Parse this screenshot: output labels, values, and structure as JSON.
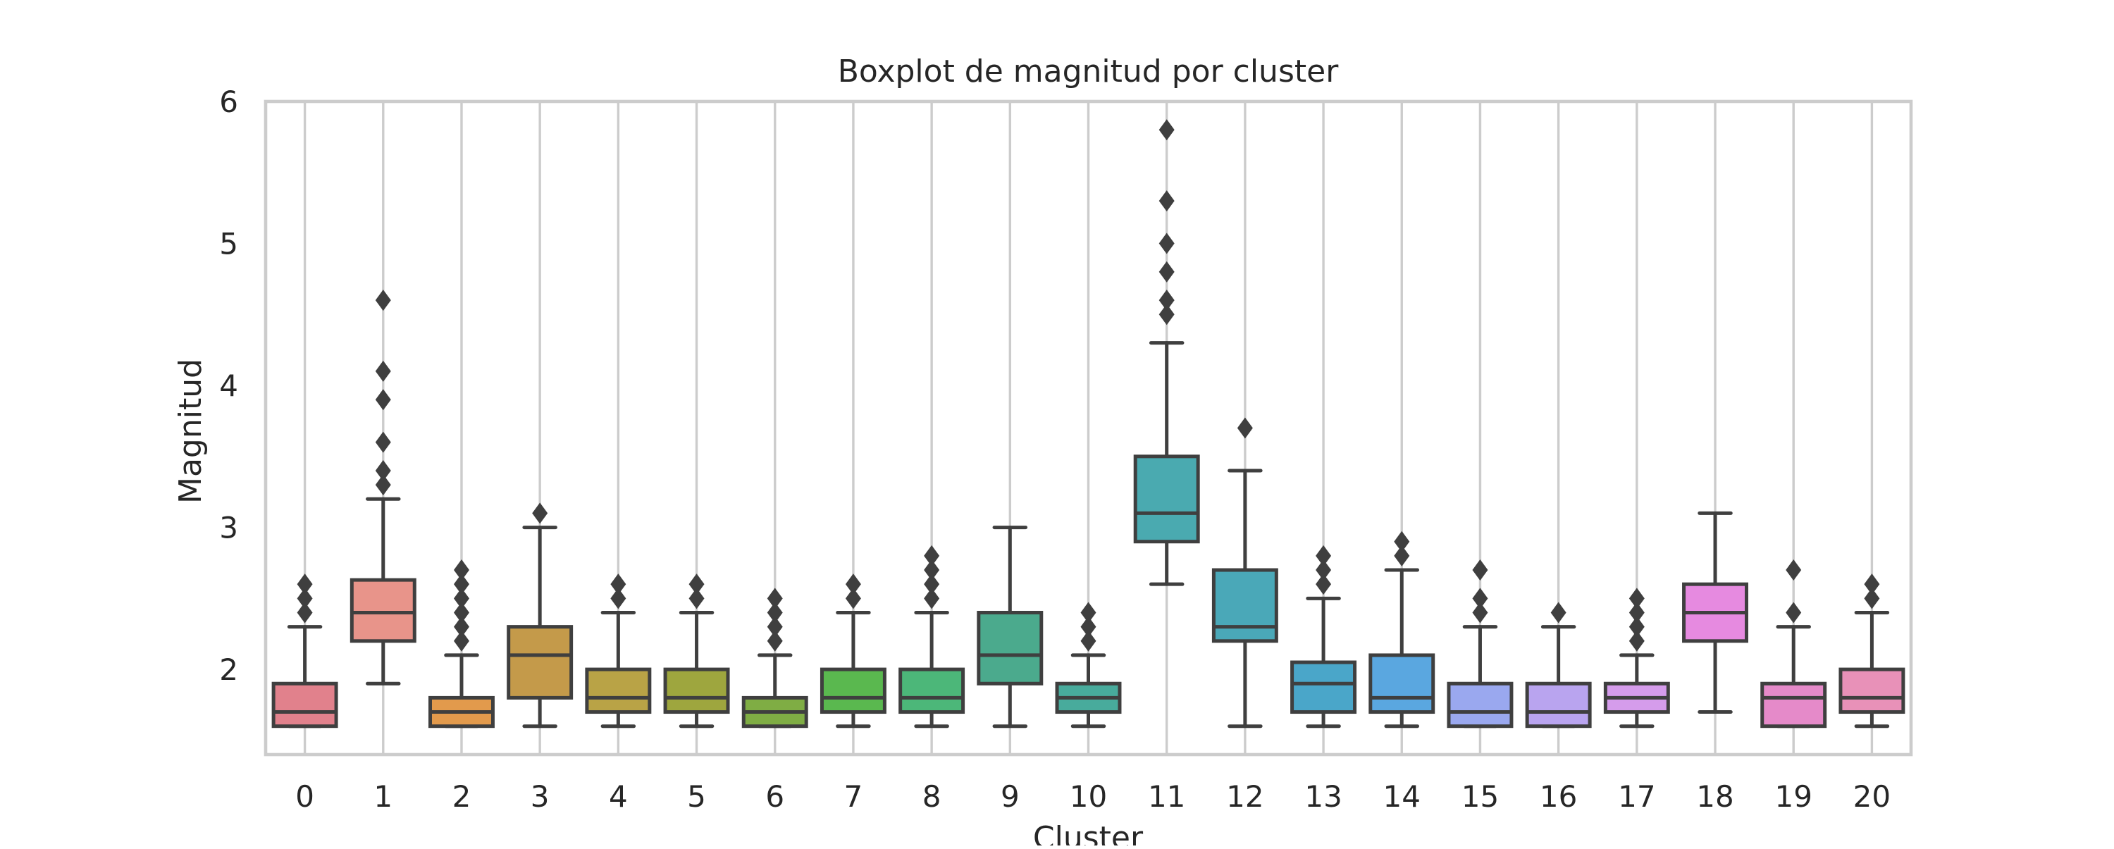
{
  "chart_data": {
    "type": "box",
    "title": "Boxplot de magnitud por cluster",
    "xlabel": "Cluster",
    "ylabel": "Magnitud",
    "ylim": [
      1.4,
      6.0
    ],
    "yticks": [
      2,
      3,
      4,
      5,
      6
    ],
    "grid": "vertical",
    "categories": [
      "0",
      "1",
      "2",
      "3",
      "4",
      "5",
      "6",
      "7",
      "8",
      "9",
      "10",
      "11",
      "12",
      "13",
      "14",
      "15",
      "16",
      "17",
      "18",
      "19",
      "20"
    ],
    "boxes": [
      {
        "cluster": "0",
        "whislo": 1.6,
        "q1": 1.6,
        "med": 1.7,
        "q3": 1.9,
        "whishi": 2.3,
        "fliers": [
          2.4,
          2.5,
          2.6
        ],
        "color": "#e1818c"
      },
      {
        "cluster": "1",
        "whislo": 1.9,
        "q1": 2.2,
        "med": 2.4,
        "q3": 2.63,
        "whishi": 3.2,
        "fliers": [
          3.3,
          3.4,
          3.6,
          3.9,
          4.1,
          4.6
        ],
        "color": "#e8948a"
      },
      {
        "cluster": "2",
        "whislo": 1.6,
        "q1": 1.6,
        "med": 1.7,
        "q3": 1.8,
        "whishi": 2.1,
        "fliers": [
          2.2,
          2.3,
          2.4,
          2.5,
          2.6,
          2.7
        ],
        "color": "#e29a4c"
      },
      {
        "cluster": "3",
        "whislo": 1.6,
        "q1": 1.8,
        "med": 2.1,
        "q3": 2.3,
        "whishi": 3.0,
        "fliers": [
          3.1
        ],
        "color": "#c49a4a"
      },
      {
        "cluster": "4",
        "whislo": 1.6,
        "q1": 1.7,
        "med": 1.8,
        "q3": 2.0,
        "whishi": 2.4,
        "fliers": [
          2.5,
          2.6
        ],
        "color": "#b9a346"
      },
      {
        "cluster": "5",
        "whislo": 1.6,
        "q1": 1.7,
        "med": 1.8,
        "q3": 2.0,
        "whishi": 2.4,
        "fliers": [
          2.5,
          2.6
        ],
        "color": "#9ea63e"
      },
      {
        "cluster": "6",
        "whislo": 1.6,
        "q1": 1.6,
        "med": 1.7,
        "q3": 1.8,
        "whishi": 2.1,
        "fliers": [
          2.2,
          2.3,
          2.4,
          2.5
        ],
        "color": "#7fad44"
      },
      {
        "cluster": "7",
        "whislo": 1.6,
        "q1": 1.7,
        "med": 1.8,
        "q3": 2.0,
        "whishi": 2.4,
        "fliers": [
          2.5,
          2.6
        ],
        "color": "#5ab84f"
      },
      {
        "cluster": "8",
        "whislo": 1.6,
        "q1": 1.7,
        "med": 1.8,
        "q3": 2.0,
        "whishi": 2.4,
        "fliers": [
          2.5,
          2.6,
          2.7,
          2.8
        ],
        "color": "#4cb779"
      },
      {
        "cluster": "9",
        "whislo": 1.6,
        "q1": 1.9,
        "med": 2.1,
        "q3": 2.4,
        "whishi": 3.0,
        "fliers": [],
        "color": "#4baa8d"
      },
      {
        "cluster": "10",
        "whislo": 1.6,
        "q1": 1.7,
        "med": 1.8,
        "q3": 1.9,
        "whishi": 2.1,
        "fliers": [
          2.2,
          2.3,
          2.4
        ],
        "color": "#48ab9c"
      },
      {
        "cluster": "11",
        "whislo": 2.6,
        "q1": 2.9,
        "med": 3.1,
        "q3": 3.5,
        "whishi": 4.3,
        "fliers": [
          4.5,
          4.6,
          4.8,
          5.0,
          5.3,
          5.8
        ],
        "color": "#4aaab0"
      },
      {
        "cluster": "12",
        "whislo": 1.6,
        "q1": 2.2,
        "med": 2.3,
        "q3": 2.7,
        "whishi": 3.4,
        "fliers": [
          3.7
        ],
        "color": "#4aa8b8"
      },
      {
        "cluster": "13",
        "whislo": 1.6,
        "q1": 1.7,
        "med": 1.9,
        "q3": 2.05,
        "whishi": 2.5,
        "fliers": [
          2.6,
          2.7,
          2.8
        ],
        "color": "#4aa6c9"
      },
      {
        "cluster": "14",
        "whislo": 1.6,
        "q1": 1.7,
        "med": 1.8,
        "q3": 2.1,
        "whishi": 2.7,
        "fliers": [
          2.8,
          2.9
        ],
        "color": "#5aa7e0"
      },
      {
        "cluster": "15",
        "whislo": 1.6,
        "q1": 1.6,
        "med": 1.7,
        "q3": 1.9,
        "whishi": 2.3,
        "fliers": [
          2.4,
          2.5,
          2.7
        ],
        "color": "#9aa8ef"
      },
      {
        "cluster": "16",
        "whislo": 1.6,
        "q1": 1.6,
        "med": 1.7,
        "q3": 1.9,
        "whishi": 2.3,
        "fliers": [
          2.4
        ],
        "color": "#b9a4ef"
      },
      {
        "cluster": "17",
        "whislo": 1.6,
        "q1": 1.7,
        "med": 1.8,
        "q3": 1.9,
        "whishi": 2.1,
        "fliers": [
          2.2,
          2.3,
          2.4,
          2.5
        ],
        "color": "#d59ceb"
      },
      {
        "cluster": "18",
        "whislo": 1.7,
        "q1": 2.2,
        "med": 2.4,
        "q3": 2.6,
        "whishi": 3.1,
        "fliers": [],
        "color": "#e68ae0"
      },
      {
        "cluster": "19",
        "whislo": 1.6,
        "q1": 1.6,
        "med": 1.8,
        "q3": 1.9,
        "whishi": 2.3,
        "fliers": [
          2.4,
          2.7
        ],
        "color": "#e58ac9"
      },
      {
        "cluster": "20",
        "whislo": 1.6,
        "q1": 1.7,
        "med": 1.8,
        "q3": 2.0,
        "whishi": 2.4,
        "fliers": [
          2.5,
          2.6
        ],
        "color": "#e891b8"
      }
    ]
  }
}
